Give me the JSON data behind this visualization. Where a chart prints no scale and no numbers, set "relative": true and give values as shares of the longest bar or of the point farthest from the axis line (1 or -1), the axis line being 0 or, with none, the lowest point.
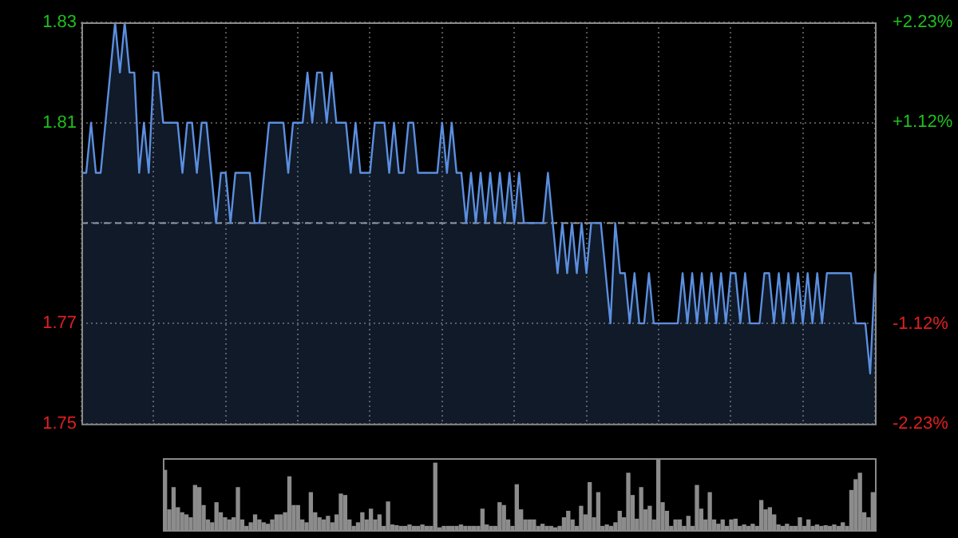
{
  "chart_data": [
    {
      "type": "area",
      "color": "#5b8fe0",
      "categories": [
        null,
        null,
        null,
        null,
        null,
        null,
        null,
        null,
        null,
        null,
        null,
        null,
        null,
        null,
        null,
        null,
        null,
        null,
        null,
        null,
        null,
        null,
        null,
        null,
        null,
        null,
        null,
        null,
        null,
        null,
        null,
        null,
        null,
        null,
        null,
        null,
        null,
        null,
        null,
        null,
        null,
        null,
        null,
        null,
        null,
        null,
        null,
        null,
        null,
        null,
        null,
        null,
        null,
        null,
        null,
        null,
        null,
        null,
        null,
        null,
        null,
        null,
        null,
        null,
        null,
        null,
        null,
        null,
        null,
        null,
        null,
        null,
        null,
        null,
        null,
        null,
        null,
        null,
        null,
        null,
        null,
        null,
        null,
        null,
        null,
        null,
        null,
        null,
        null,
        null,
        null,
        null,
        null,
        null,
        null,
        null,
        null,
        null,
        null,
        null,
        null,
        null,
        null,
        null,
        null,
        null,
        null,
        null,
        null,
        null,
        null,
        null,
        null,
        null,
        null,
        null,
        null,
        null,
        null,
        null,
        null,
        null,
        null,
        null,
        null,
        null,
        null,
        null,
        null,
        null,
        null,
        null,
        null,
        null,
        null,
        null,
        null,
        null,
        null,
        null,
        null,
        null,
        null,
        null,
        null,
        null,
        null,
        null,
        null,
        null,
        null,
        null,
        null,
        null,
        null,
        null,
        null,
        null,
        null,
        null,
        null,
        null,
        null,
        null,
        null,
        null
      ],
      "values": [
        1.8,
        1.8,
        1.81,
        1.8,
        1.8,
        1.81,
        1.82,
        1.83,
        1.82,
        1.83,
        1.82,
        1.82,
        1.8,
        1.81,
        1.8,
        1.82,
        1.82,
        1.81,
        1.81,
        1.81,
        1.81,
        1.8,
        1.81,
        1.81,
        1.8,
        1.81,
        1.81,
        1.8,
        1.79,
        1.8,
        1.8,
        1.79,
        1.8,
        1.8,
        1.8,
        1.8,
        1.79,
        1.79,
        1.8,
        1.81,
        1.81,
        1.81,
        1.81,
        1.8,
        1.81,
        1.81,
        1.81,
        1.82,
        1.81,
        1.82,
        1.82,
        1.81,
        1.82,
        1.81,
        1.81,
        1.81,
        1.8,
        1.81,
        1.8,
        1.8,
        1.8,
        1.81,
        1.81,
        1.81,
        1.8,
        1.81,
        1.8,
        1.8,
        1.81,
        1.81,
        1.8,
        1.8,
        1.8,
        1.8,
        1.8,
        1.81,
        1.8,
        1.81,
        1.8,
        1.8,
        1.79,
        1.8,
        1.79,
        1.8,
        1.79,
        1.8,
        1.79,
        1.8,
        1.79,
        1.8,
        1.79,
        1.8,
        1.79,
        1.79,
        1.79,
        1.79,
        1.79,
        1.8,
        1.79,
        1.78,
        1.79,
        1.78,
        1.79,
        1.78,
        1.79,
        1.78,
        1.79,
        1.79,
        1.79,
        1.78,
        1.77,
        1.79,
        1.78,
        1.78,
        1.77,
        1.78,
        1.77,
        1.77,
        1.78,
        1.77,
        1.77,
        1.77,
        1.77,
        1.77,
        1.77,
        1.78,
        1.77,
        1.78,
        1.77,
        1.78,
        1.77,
        1.78,
        1.77,
        1.78,
        1.77,
        1.78,
        1.78,
        1.77,
        1.78,
        1.77,
        1.77,
        1.77,
        1.78,
        1.78,
        1.77,
        1.78,
        1.77,
        1.78,
        1.77,
        1.78,
        1.77,
        1.78,
        1.77,
        1.78,
        1.77,
        1.78,
        1.78,
        1.78,
        1.78,
        1.78,
        1.78,
        1.77,
        1.77,
        1.77,
        1.76,
        1.78
      ],
      "ylim": [
        1.75,
        1.83
      ],
      "yticks": [
        1.83,
        1.81,
        {
          "value": 1.79,
          "label": null
        },
        1.77,
        1.75
      ],
      "y2lim": [
        -2.23,
        2.23
      ],
      "y2ticks": [
        {
          "value": 2.23,
          "label": "+2.23%"
        },
        {
          "value": 1.12,
          "label": "+1.12%"
        },
        {
          "value": 0,
          "label": null
        },
        {
          "value": -1.12,
          "label": "-1.12%"
        },
        {
          "value": -2.23,
          "label": "-2.23%"
        }
      ],
      "ref_lines": [
        {
          "axis": "y",
          "value": 1.79,
          "color": "#9a9a9a",
          "line_style": "dashed"
        }
      ],
      "grid": true,
      "tick_labels": "y"
    },
    {
      "type": "bar",
      "relative": true,
      "color": "#8c8c8c",
      "tick_labels": false,
      "categories": [
        null,
        null,
        null,
        null,
        null,
        null,
        null,
        null,
        null,
        null,
        null,
        null,
        null,
        null,
        null,
        null,
        null,
        null,
        null,
        null,
        null,
        null,
        null,
        null,
        null,
        null,
        null,
        null,
        null,
        null,
        null,
        null,
        null,
        null,
        null,
        null,
        null,
        null,
        null,
        null,
        null,
        null,
        null,
        null,
        null,
        null,
        null,
        null,
        null,
        null,
        null,
        null,
        null,
        null,
        null,
        null,
        null,
        null,
        null,
        null,
        null,
        null,
        null,
        null,
        null,
        null,
        null,
        null,
        null,
        null,
        null,
        null,
        null,
        null,
        null,
        null,
        null,
        null,
        null,
        null,
        null,
        null,
        null,
        null,
        null,
        null,
        null,
        null,
        null,
        null,
        null,
        null,
        null,
        null,
        null,
        null,
        null,
        null,
        null,
        null,
        null,
        null,
        null,
        null,
        null,
        null,
        null,
        null,
        null,
        null,
        null,
        null,
        null,
        null,
        null,
        null,
        null,
        null,
        null,
        null,
        null,
        null,
        null,
        null,
        null,
        null,
        null,
        null,
        null,
        null,
        null,
        null,
        null,
        null,
        null,
        null,
        null,
        null,
        null,
        null,
        null,
        null,
        null,
        null,
        null,
        null,
        null,
        null,
        null,
        null,
        null,
        null,
        null,
        null,
        null,
        null,
        null,
        null,
        null,
        null,
        null,
        null,
        null,
        null,
        null,
        null
      ],
      "values": [
        0.83,
        0.28,
        0.59,
        0.31,
        0.24,
        0.21,
        0.17,
        0.62,
        0.59,
        0.34,
        0.14,
        0.1,
        0.38,
        0.24,
        0.17,
        0.14,
        0.17,
        0.59,
        0.14,
        0.05,
        0.1,
        0.21,
        0.14,
        0.1,
        0.08,
        0.14,
        0.21,
        0.21,
        0.24,
        0.74,
        0.34,
        0.34,
        0.14,
        0.1,
        0.52,
        0.24,
        0.17,
        0.14,
        0.19,
        0.1,
        0.21,
        0.5,
        0.48,
        0.14,
        0.05,
        0.1,
        0.24,
        0.14,
        0.29,
        0.14,
        0.21,
        0.05,
        0.39,
        0.07,
        0.06,
        0.05,
        0.05,
        0.07,
        0.05,
        0.05,
        0.07,
        0.05,
        0.05,
        0.93,
        0.03,
        0.05,
        0.05,
        0.05,
        0.05,
        0.07,
        0.05,
        0.05,
        0.05,
        0.05,
        0.29,
        0.07,
        0.05,
        0.05,
        0.38,
        0.34,
        0.14,
        0.05,
        0.63,
        0.28,
        0.14,
        0.14,
        0.14,
        0.05,
        0.08,
        0.05,
        0.05,
        0.03,
        0.05,
        0.17,
        0.26,
        0.14,
        0.05,
        0.33,
        0.21,
        0.66,
        0.17,
        0.52,
        0.05,
        0.07,
        0.05,
        0.1,
        0.26,
        0.17,
        0.79,
        0.48,
        0.15,
        0.59,
        0.28,
        0.33,
        0.14,
        1,
        0.38,
        0.26,
        0.05,
        0.14,
        0.14,
        0.05,
        0.19,
        0.05,
        0.62,
        0.29,
        0.14,
        0.52,
        0.14,
        0.08,
        0.14,
        0.05,
        0.14,
        0.15,
        0.05,
        0.07,
        0.05,
        0.08,
        0.05,
        0.41,
        0.28,
        0.31,
        0.21,
        0.07,
        0.05,
        0.08,
        0.05,
        0.05,
        0.17,
        0.05,
        0.14,
        0.05,
        0.07,
        0.05,
        0.06,
        0.05,
        0.07,
        0.05,
        0.1,
        0.05,
        0.55,
        0.7,
        0.79,
        0.24,
        0.17,
        0.52
      ]
    }
  ]
}
